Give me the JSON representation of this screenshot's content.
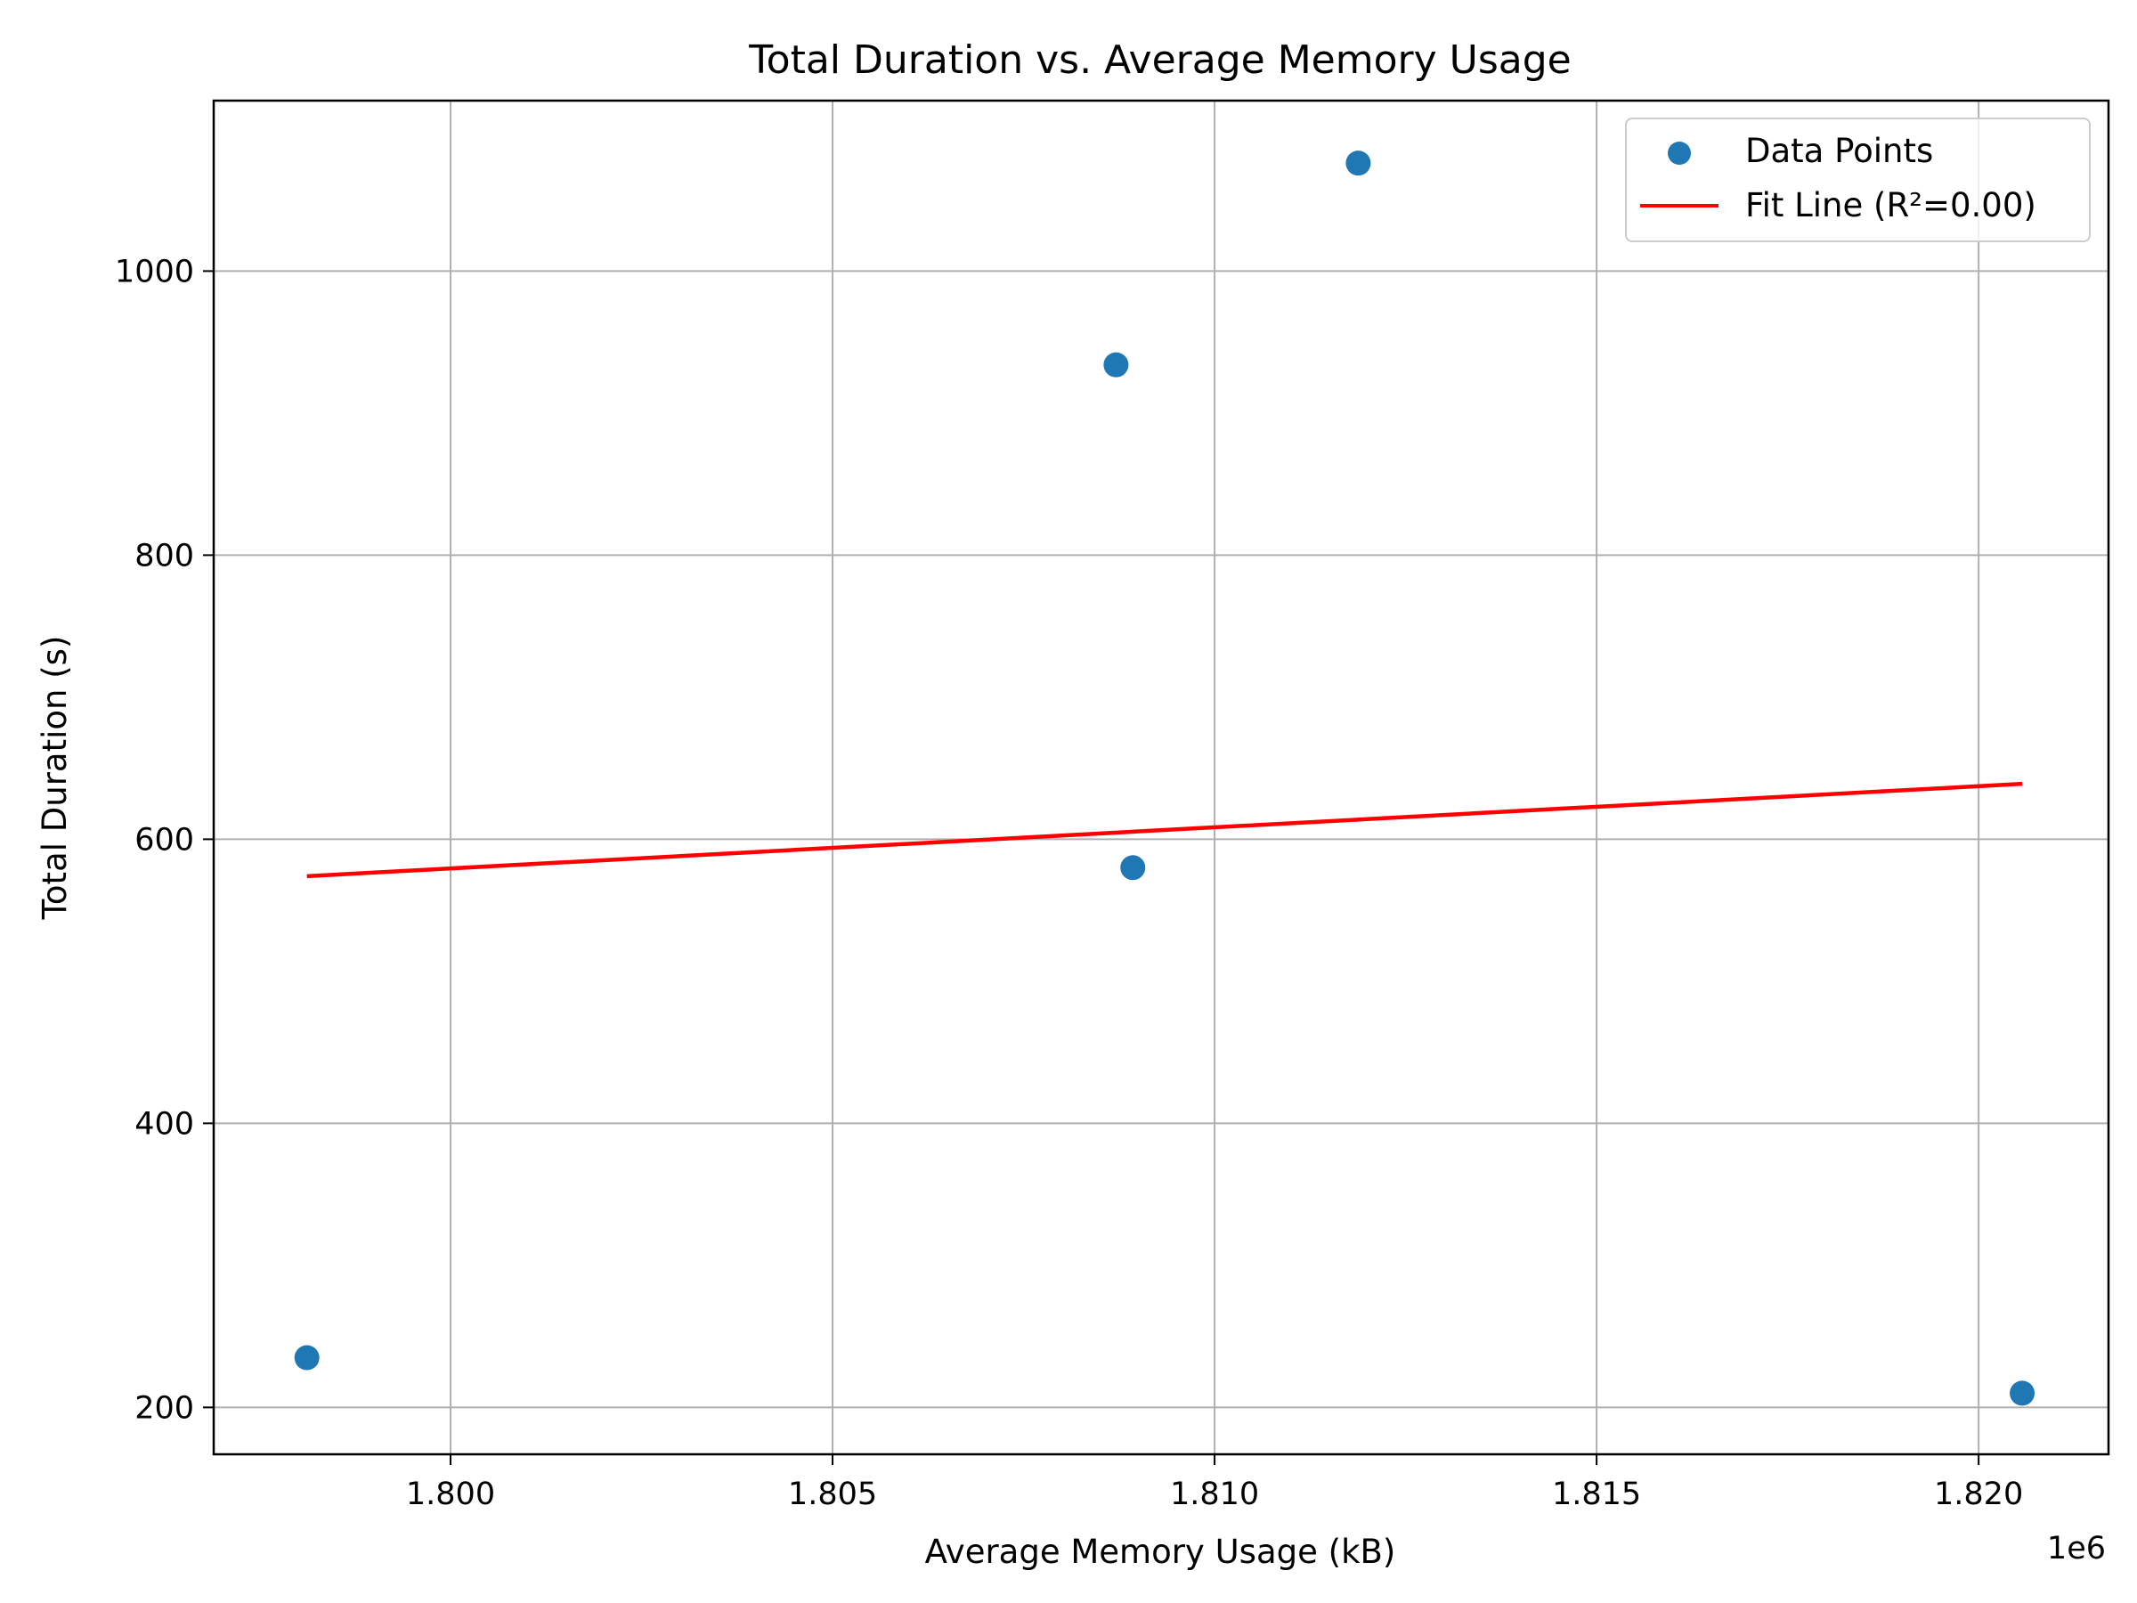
{
  "chart_data": {
    "type": "scatter",
    "title": "Total Duration vs. Average Memory Usage",
    "xlabel": "Average Memory Usage (kB)",
    "ylabel": "Total Duration (s)",
    "x_offset_label": "1e6",
    "xlim": [
      1.7969,
      1.8217
    ],
    "ylim": [
      167,
      1120
    ],
    "x_ticks": [
      1.8,
      1.805,
      1.81,
      1.815,
      1.82
    ],
    "x_tick_labels": [
      "1.800",
      "1.805",
      "1.810",
      "1.815",
      "1.820"
    ],
    "y_ticks": [
      200,
      400,
      600,
      800,
      1000
    ],
    "y_tick_labels": [
      "200",
      "400",
      "600",
      "800",
      "1000"
    ],
    "grid": true,
    "legend_position": "top-right",
    "series": [
      {
        "name": "Data Points",
        "kind": "scatter",
        "color": "#1f77b4",
        "x": [
          1.79812,
          1.80871,
          1.80893,
          1.81188,
          1.82057
        ],
        "y": [
          235,
          934,
          580,
          1076,
          210
        ]
      },
      {
        "name": "Fit Line (R²=0.00)",
        "kind": "line",
        "color": "#ff0000",
        "x": [
          1.79812,
          1.82057
        ],
        "y": [
          574,
          639
        ]
      }
    ]
  }
}
